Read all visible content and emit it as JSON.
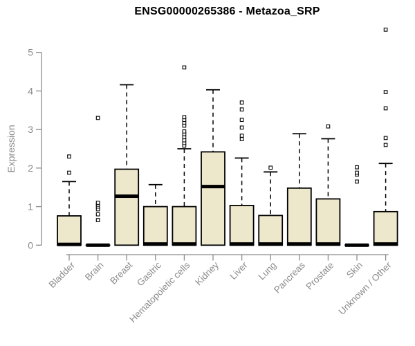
{
  "colors": {
    "background": "#ffffff",
    "box_fill": "#EDE8CC",
    "box_border": "#000000",
    "median": "#000000",
    "whisker": "#000000",
    "outlier_stroke": "#000000",
    "outlier_fill": "#ffffff",
    "axis": "#8b8b8b",
    "axis_text": "#8b8b8b",
    "title_color": "#000000"
  },
  "chart_data": {
    "type": "boxplot",
    "title": "ENSG00000265386 - Metazoa_SRP",
    "xlabel": "",
    "ylabel": "Expression",
    "ylim": [
      0,
      5.7
    ],
    "yticks": [
      0,
      1,
      2,
      3,
      4,
      5
    ],
    "grid": false,
    "legend": "none",
    "categories": [
      "Bladder",
      "Brain",
      "Breast",
      "Gastric",
      "Hematopoietic cells",
      "Kidney",
      "Liver",
      "Lung",
      "Pancreas",
      "Prostate",
      "Skin",
      "Unknown / Other"
    ],
    "boxes": [
      {
        "category": "Bladder",
        "whisker_low": 0,
        "q1": 0,
        "median": 0.02,
        "q3": 0.76,
        "whisker_high": 1.65,
        "outliers": [
          1.88,
          2.3
        ]
      },
      {
        "category": "Brain",
        "whisker_low": 0,
        "q1": 0,
        "median": 0,
        "q3": 0,
        "whisker_high": 0,
        "outliers": [
          0.65,
          0.8,
          0.93,
          1.0,
          1.05,
          1.1,
          3.3
        ]
      },
      {
        "category": "Breast",
        "whisker_low": 0,
        "q1": 0,
        "median": 1.27,
        "q3": 1.97,
        "whisker_high": 4.16,
        "outliers": []
      },
      {
        "category": "Gastric",
        "whisker_low": 0,
        "q1": 0,
        "median": 0.03,
        "q3": 1.0,
        "whisker_high": 1.57,
        "outliers": []
      },
      {
        "category": "Hematopoietic cells",
        "whisker_low": 0,
        "q1": 0,
        "median": 0.03,
        "q3": 1.0,
        "whisker_high": 2.5,
        "outliers": [
          2.58,
          2.65,
          2.72,
          2.8,
          2.88,
          2.95,
          3.1,
          3.18,
          3.25,
          3.32,
          4.61
        ]
      },
      {
        "category": "Kidney",
        "whisker_low": 0,
        "q1": 0,
        "median": 1.52,
        "q3": 2.42,
        "whisker_high": 4.03,
        "outliers": []
      },
      {
        "category": "Liver",
        "whisker_low": 0,
        "q1": 0,
        "median": 0.03,
        "q3": 1.03,
        "whisker_high": 2.26,
        "outliers": [
          2.75,
          2.84,
          3.05,
          3.25,
          3.52,
          3.7
        ]
      },
      {
        "category": "Lung",
        "whisker_low": 0,
        "q1": 0,
        "median": 0.03,
        "q3": 0.77,
        "whisker_high": 1.9,
        "outliers": [
          2.01
        ]
      },
      {
        "category": "Pancreas",
        "whisker_low": 0,
        "q1": 0,
        "median": 0.03,
        "q3": 1.48,
        "whisker_high": 2.89,
        "outliers": []
      },
      {
        "category": "Prostate",
        "whisker_low": 0,
        "q1": 0,
        "median": 0.03,
        "q3": 1.2,
        "whisker_high": 2.76,
        "outliers": [
          3.08
        ]
      },
      {
        "category": "Skin",
        "whisker_low": 0,
        "q1": 0,
        "median": 0,
        "q3": 0,
        "whisker_high": 0,
        "outliers": [
          1.65,
          1.83,
          1.88,
          2.02
        ]
      },
      {
        "category": "Unknown / Other",
        "whisker_low": 0,
        "q1": 0,
        "median": 0.03,
        "q3": 0.87,
        "whisker_high": 2.12,
        "outliers": [
          2.6,
          2.78,
          3.55,
          3.97,
          5.59
        ]
      }
    ]
  }
}
